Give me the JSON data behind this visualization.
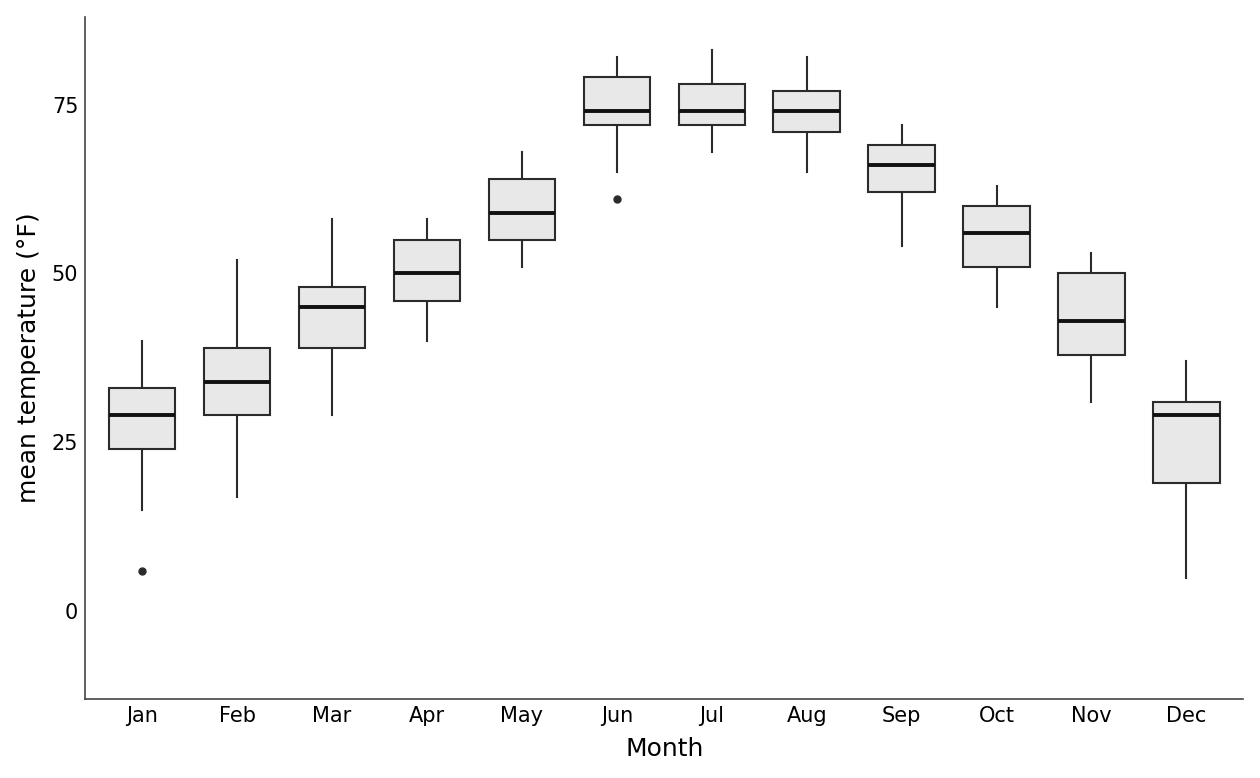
{
  "months": [
    "Jan",
    "Feb",
    "Mar",
    "Apr",
    "May",
    "Jun",
    "Jul",
    "Aug",
    "Sep",
    "Oct",
    "Nov",
    "Dec"
  ],
  "box_data": {
    "Jan": {
      "q1": 24.0,
      "median": 29.0,
      "q3": 33.0,
      "whisker_low": 15.0,
      "whisker_high": 40.0,
      "outliers": [
        6.0
      ]
    },
    "Feb": {
      "q1": 29.0,
      "median": 34.0,
      "q3": 39.0,
      "whisker_low": 17.0,
      "whisker_high": 52.0,
      "outliers": []
    },
    "Mar": {
      "q1": 39.0,
      "median": 45.0,
      "q3": 48.0,
      "whisker_low": 29.0,
      "whisker_high": 58.0,
      "outliers": []
    },
    "Apr": {
      "q1": 46.0,
      "median": 50.0,
      "q3": 55.0,
      "whisker_low": 40.0,
      "whisker_high": 58.0,
      "outliers": []
    },
    "May": {
      "q1": 55.0,
      "median": 59.0,
      "q3": 64.0,
      "whisker_low": 51.0,
      "whisker_high": 68.0,
      "outliers": []
    },
    "Jun": {
      "q1": 72.0,
      "median": 74.0,
      "q3": 79.0,
      "whisker_low": 65.0,
      "whisker_high": 82.0,
      "outliers": [
        61.0
      ]
    },
    "Jul": {
      "q1": 72.0,
      "median": 74.0,
      "q3": 78.0,
      "whisker_low": 68.0,
      "whisker_high": 83.0,
      "outliers": []
    },
    "Aug": {
      "q1": 71.0,
      "median": 74.0,
      "q3": 77.0,
      "whisker_low": 65.0,
      "whisker_high": 82.0,
      "outliers": []
    },
    "Sep": {
      "q1": 62.0,
      "median": 66.0,
      "q3": 69.0,
      "whisker_low": 54.0,
      "whisker_high": 72.0,
      "outliers": []
    },
    "Oct": {
      "q1": 51.0,
      "median": 56.0,
      "q3": 60.0,
      "whisker_low": 45.0,
      "whisker_high": 63.0,
      "outliers": []
    },
    "Nov": {
      "q1": 38.0,
      "median": 43.0,
      "q3": 50.0,
      "whisker_low": 31.0,
      "whisker_high": 53.0,
      "outliers": []
    },
    "Dec": {
      "q1": 19.0,
      "median": 29.0,
      "q3": 31.0,
      "whisker_low": 5.0,
      "whisker_high": 37.0,
      "outliers": []
    }
  },
  "box_facecolor": "#e8e8e8",
  "box_edgecolor": "#2b2b2b",
  "median_color": "#111111",
  "whisker_color": "#2b2b2b",
  "outlier_color": "#2b2b2b",
  "background_color": "#ffffff",
  "ylabel": "mean temperature (°F)",
  "xlabel": "Month",
  "ylim": [
    -13,
    88
  ],
  "yticks": [
    0,
    25,
    50,
    75
  ],
  "box_width": 0.7,
  "linewidth": 1.5,
  "median_linewidth": 2.8,
  "figsize": [
    12.6,
    7.78
  ],
  "dpi": 100,
  "title_fontsize": 16,
  "axis_fontsize": 18,
  "tick_fontsize": 15
}
